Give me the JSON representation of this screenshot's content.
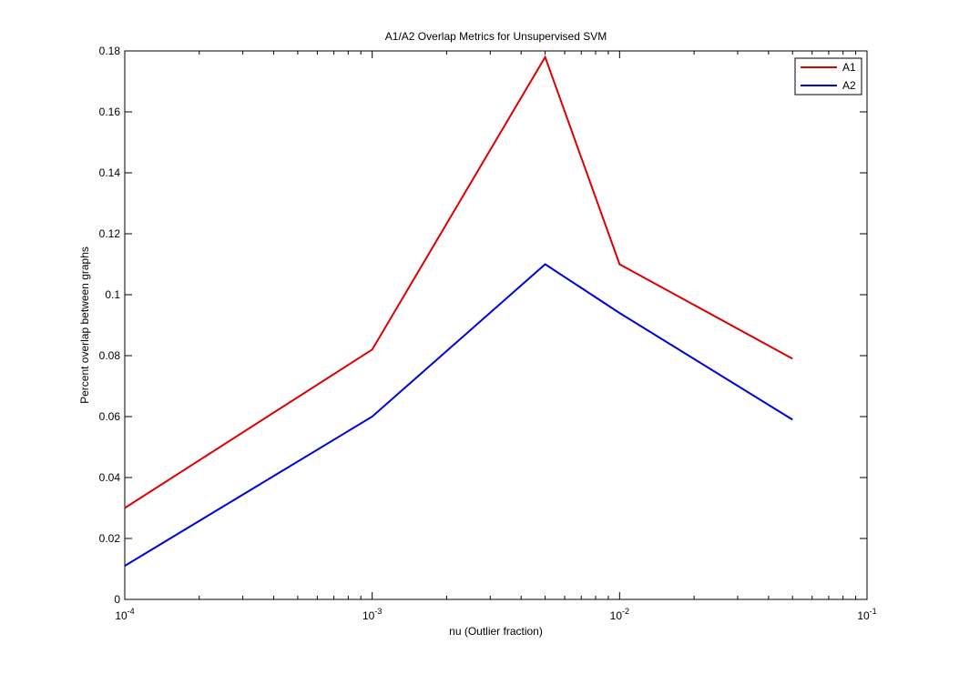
{
  "chart_data": {
    "type": "line",
    "title": "A1/A2 Overlap Metrics for Unsupervised SVM",
    "xlabel": "nu (Outlier fraction)",
    "ylabel": "Percent overlap between graphs",
    "x_scale": "log",
    "xlim": [
      0.0001,
      0.1
    ],
    "ylim": [
      0,
      0.18
    ],
    "x_ticks": [
      {
        "value": 0.0001,
        "base": "10",
        "exp": "-4"
      },
      {
        "value": 0.001,
        "base": "10",
        "exp": "-3"
      },
      {
        "value": 0.01,
        "base": "10",
        "exp": "-2"
      },
      {
        "value": 0.1,
        "base": "10",
        "exp": "-1"
      }
    ],
    "y_ticks": [
      {
        "value": 0,
        "label": "0"
      },
      {
        "value": 0.02,
        "label": "0.02"
      },
      {
        "value": 0.04,
        "label": "0.04"
      },
      {
        "value": 0.06,
        "label": "0.06"
      },
      {
        "value": 0.08,
        "label": "0.08"
      },
      {
        "value": 0.1,
        "label": "0.1"
      },
      {
        "value": 0.12,
        "label": "0.12"
      },
      {
        "value": 0.14,
        "label": "0.14"
      },
      {
        "value": 0.16,
        "label": "0.16"
      },
      {
        "value": 0.18,
        "label": "0.18"
      }
    ],
    "grid": false,
    "legend_position": "top-right",
    "series": [
      {
        "name": "A1",
        "color": "#dd0000",
        "x": [
          0.0001,
          0.001,
          0.005,
          0.01,
          0.05
        ],
        "y": [
          0.03,
          0.082,
          0.178,
          0.11,
          0.079
        ]
      },
      {
        "name": "A2",
        "color": "#0000dd",
        "x": [
          0.0001,
          0.001,
          0.005,
          0.01,
          0.05
        ],
        "y": [
          0.011,
          0.06,
          0.11,
          0.094,
          0.059
        ]
      }
    ]
  }
}
